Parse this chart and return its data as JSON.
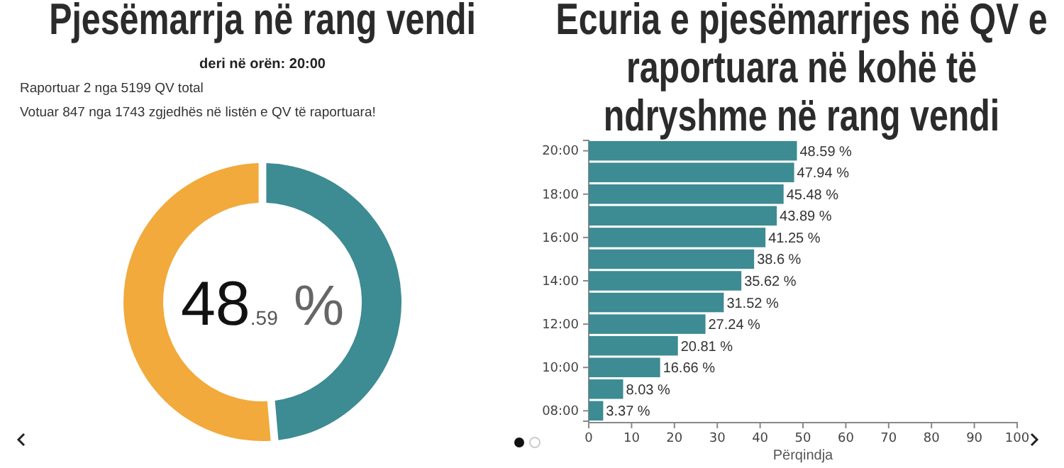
{
  "chart_data": [
    {
      "type": "donut",
      "title": "Pjesëmarrja në rang vendi",
      "subtitle": "deri në orën: 20:00",
      "annotations": [
        "Raportuar 2 nga 5199 QV total",
        "Votuar 847 nga 1743 zgjedhës në listën e QV të raportuara!"
      ],
      "categories": [
        null,
        null
      ],
      "values": [
        48.59,
        51.41
      ],
      "colors": [
        "#3d8b93",
        "#f1aa3b"
      ],
      "value_labels": [
        "48.59 %",
        null
      ]
    },
    {
      "type": "bar",
      "orientation": "horizontal",
      "title": "Ecuria e pjesëmarrjes në QV e raportuara në kohë të ndryshme në rang vendi",
      "xlabel": "Përqindja",
      "categories": [
        "20:00",
        null,
        "18:00",
        null,
        "16:00",
        null,
        "14:00",
        null,
        "12:00",
        null,
        "10:00",
        null,
        "08:00"
      ],
      "values": [
        48.59,
        47.94,
        45.48,
        43.89,
        41.25,
        38.6,
        35.62,
        31.52,
        27.24,
        20.81,
        16.66,
        8.03,
        3.37
      ],
      "color": "#3d8b93",
      "value_labels": [
        "48.59 %",
        "47.94 %",
        "45.48 %",
        "43.89 %",
        "41.25 %",
        "38.6 %",
        "35.62 %",
        "31.52 %",
        "27.24 %",
        "20.81 %",
        "16.66 %",
        "8.03 %",
        "3.37 %"
      ],
      "xlim": [
        0,
        100
      ],
      "xticks": [
        0,
        10,
        20,
        30,
        40,
        50,
        60,
        70,
        80,
        90,
        100
      ]
    }
  ]
}
